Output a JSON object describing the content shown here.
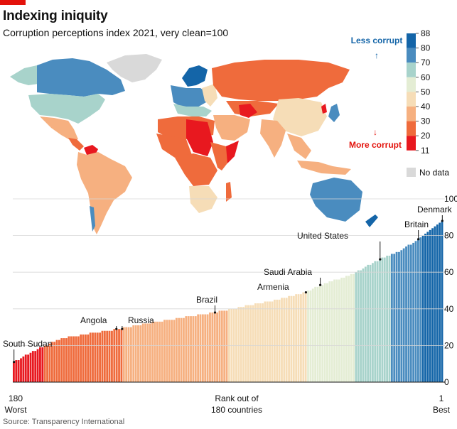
{
  "header": {
    "title": "Indexing iniquity",
    "subtitle": "Corruption perceptions index 2021, very clean=100"
  },
  "source": "Source: Transparency International",
  "legend": {
    "less_corrupt": "Less corrupt",
    "more_corrupt": "More corrupt",
    "ticks": [
      "88",
      "80",
      "70",
      "60",
      "50",
      "40",
      "30",
      "20",
      "11"
    ],
    "no_data": "No data",
    "colors": [
      "#1465a8",
      "#4a8cbf",
      "#a8d3cb",
      "#e4edd4",
      "#f6ddb7",
      "#f6b080",
      "#ef6b3c",
      "#e8181f"
    ],
    "no_data_color": "#d9d9d9",
    "up_arrow": "↑",
    "down_arrow": "↓"
  },
  "chart_data": {
    "type": "bar",
    "title": "Corruption perceptions index 2021, very clean=100",
    "xlabel": "Rank out of 180 countries",
    "ylabel": "",
    "ylim": [
      0,
      100
    ],
    "yticks": [
      "0",
      "20",
      "40",
      "60",
      "80",
      "100"
    ],
    "x_left_rank": "180",
    "x_left_label": "Worst",
    "x_right_rank": "1",
    "x_right_label": "Best",
    "x_axis_line1": "Rank out of",
    "x_axis_line2": "180 countries",
    "rank_count": 180,
    "score_min": 11,
    "score_max": 88,
    "annotations": [
      {
        "label": "South Sudan",
        "rank": 180,
        "score": 11
      },
      {
        "label": "Angola",
        "rank": 136,
        "score": 29
      },
      {
        "label": "Russia",
        "rank": 136,
        "score": 29
      },
      {
        "label": "Brazil",
        "rank": 96,
        "score": 38
      },
      {
        "label": "Armenia",
        "rank": 58,
        "score": 49
      },
      {
        "label": "Saudi Arabia",
        "rank": 52,
        "score": 53
      },
      {
        "label": "United States",
        "rank": 27,
        "score": 67
      },
      {
        "label": "Britain",
        "rank": 11,
        "score": 78
      },
      {
        "label": "Denmark",
        "rank": 1,
        "score": 88
      }
    ]
  }
}
